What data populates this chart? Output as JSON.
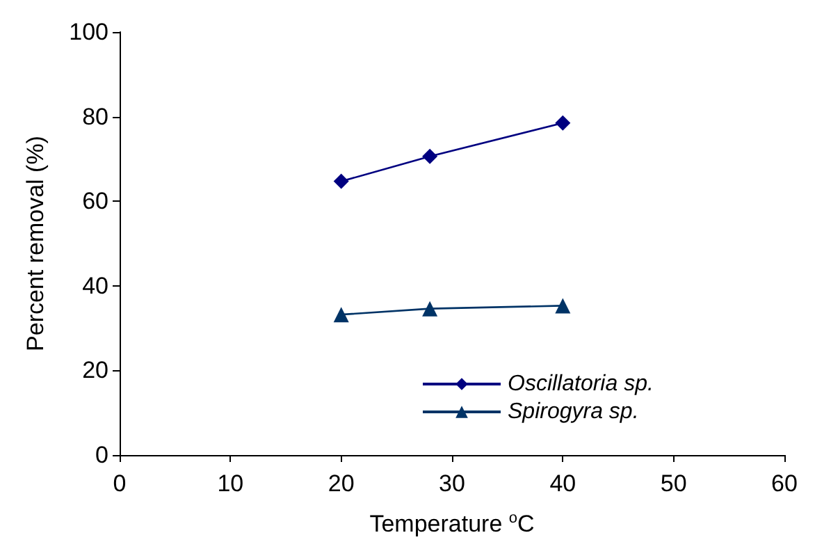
{
  "chart_data": {
    "type": "line",
    "xlabel": "Temperature $^{o}$C",
    "ylabel": "Percent removal (%)",
    "x": [
      20,
      28,
      40
    ],
    "series": [
      {
        "name": "Oscillatoria sp.",
        "color": "#000080",
        "marker": "diamond",
        "values": [
          64.7,
          70.6,
          78.5
        ]
      },
      {
        "name": "Spirogyra sp.",
        "color": "#003366",
        "marker": "triangle",
        "values": [
          33.2,
          34.6,
          35.3
        ]
      }
    ],
    "xlim": [
      0,
      60
    ],
    "xticks": [
      0,
      10,
      20,
      30,
      40,
      50,
      60
    ],
    "ylim": [
      0,
      100
    ],
    "yticks": [
      0,
      20,
      40,
      60,
      80,
      100
    ],
    "grid": false,
    "legend": "bottom",
    "line_style": "solid"
  }
}
